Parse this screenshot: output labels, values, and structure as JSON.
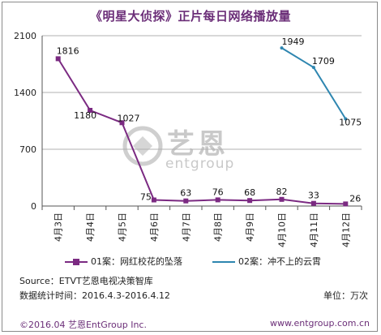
{
  "chart_data": {
    "type": "line",
    "title": "《明星大侦探》正片每日网络播放量",
    "categories": [
      "4月3日",
      "4月4日",
      "4月5日",
      "4月6日",
      "4月7日",
      "4月8日",
      "4月9日",
      "4月10日",
      "4月11日",
      "4月12日"
    ],
    "ylim": [
      0,
      2100
    ],
    "yticks": [
      "0",
      "700",
      "1400",
      "2100"
    ],
    "grid": true,
    "legend_position": "bottom",
    "series": [
      {
        "name": "01案：网红校花的坠落",
        "color": "#7b2a82",
        "values": [
          1816,
          1180,
          1027,
          75,
          63,
          76,
          68,
          82,
          33,
          26
        ],
        "labels": [
          "1816",
          "1180",
          "1027",
          "75",
          "63",
          "76",
          "68",
          "82",
          "33",
          "26"
        ]
      },
      {
        "name": "02案：冲不上的云霄",
        "color": "#2e86b0",
        "values": [
          null,
          null,
          null,
          null,
          null,
          null,
          null,
          1949,
          1709,
          1075
        ],
        "labels": [
          "",
          "",
          "",
          "",
          "",
          "",
          "",
          "1949",
          "1709",
          "1075"
        ]
      }
    ]
  },
  "source_line": "Source：ETVT艺恩电视决策智库",
  "date_line": "数据统计时间：2016.4.3-2016.4.12",
  "unit_label": "单位：万次",
  "watermark": {
    "cn": "艺恩",
    "en": "entgroup"
  },
  "footer": {
    "copyright": "©2016.04 艺恩EntGroup Inc.",
    "website": "www.entgroup.com.cn"
  }
}
